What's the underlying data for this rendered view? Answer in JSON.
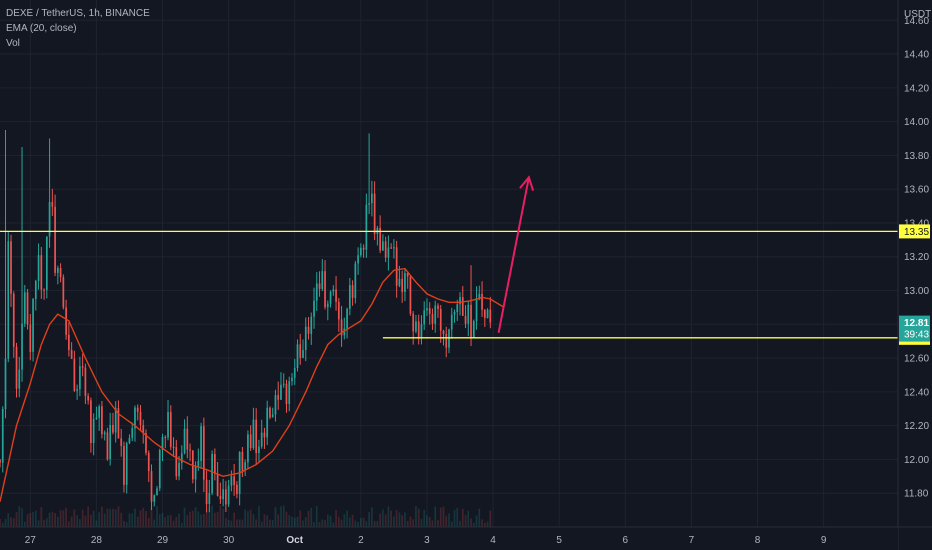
{
  "legend": {
    "symbol_line": "DEXE / TetherUS, 1h, BINANCE",
    "ema_line": "EMA (20, close)",
    "vol_line": "Vol"
  },
  "currency": "USDT",
  "colors": {
    "background": "#131722",
    "grid": "#1f2330",
    "up": "#26a69a",
    "down": "#ef5350",
    "ema": "#e0401a",
    "level": "#ffff3b",
    "arrow": "#e91e63",
    "last_price_bg": "#26a69a"
  },
  "chart_data": {
    "type": "candlestick",
    "symbol": "DEXE / TetherUS",
    "interval": "1h",
    "exchange": "BINANCE",
    "y_ticks": [
      "11.80",
      "12.00",
      "12.20",
      "12.40",
      "12.60",
      "12.80",
      "13.00",
      "13.20",
      "13.40",
      "13.60",
      "13.80",
      "14.00",
      "14.20",
      "14.40",
      "14.60"
    ],
    "x_ticks": [
      {
        "t": 0,
        "label": "27"
      },
      {
        "t": 24,
        "label": "28"
      },
      {
        "t": 48,
        "label": "29"
      },
      {
        "t": 72,
        "label": "30"
      },
      {
        "t": 96,
        "label": "Oct"
      },
      {
        "t": 120,
        "label": "2"
      },
      {
        "t": 144,
        "label": "3"
      },
      {
        "t": 168,
        "label": "4"
      },
      {
        "t": 192,
        "label": "5"
      },
      {
        "t": 216,
        "label": "6"
      },
      {
        "t": 240,
        "label": "7"
      },
      {
        "t": 264,
        "label": "8"
      },
      {
        "t": 288,
        "label": "9"
      }
    ],
    "ylim": [
      11.6,
      14.72
    ],
    "xlim_hours": [
      -11,
      315
    ],
    "horizontal_levels": [
      {
        "price": 13.35,
        "label": "13.35",
        "from_t": -11
      },
      {
        "price": 12.72,
        "label": "12.72",
        "from_t": 128
      }
    ],
    "last_price": {
      "value": "12.81",
      "countdown": "39:43"
    },
    "anchors": [
      {
        "t": -11,
        "p": 12.0
      },
      {
        "t": -9,
        "p": 12.7
      },
      {
        "t": -8,
        "p": 13.3
      },
      {
        "t": -5,
        "p": 12.4
      },
      {
        "t": -2,
        "p": 13.0
      },
      {
        "t": 0,
        "p": 12.7
      },
      {
        "t": 3,
        "p": 13.3
      },
      {
        "t": 5,
        "p": 12.9
      },
      {
        "t": 7,
        "p": 13.6
      },
      {
        "t": 9,
        "p": 13.2
      },
      {
        "t": 11,
        "p": 13.0
      },
      {
        "t": 13,
        "p": 12.8
      },
      {
        "t": 16,
        "p": 12.4
      },
      {
        "t": 19,
        "p": 12.6
      },
      {
        "t": 22,
        "p": 12.2
      },
      {
        "t": 25,
        "p": 12.3
      },
      {
        "t": 28,
        "p": 12.0
      },
      {
        "t": 31,
        "p": 12.3
      },
      {
        "t": 34,
        "p": 11.9
      },
      {
        "t": 38,
        "p": 12.3
      },
      {
        "t": 41,
        "p": 12.1
      },
      {
        "t": 44,
        "p": 11.8
      },
      {
        "t": 47,
        "p": 12.0
      },
      {
        "t": 50,
        "p": 12.2
      },
      {
        "t": 53,
        "p": 11.95
      },
      {
        "t": 56,
        "p": 12.15
      },
      {
        "t": 59,
        "p": 11.85
      },
      {
        "t": 62,
        "p": 12.1
      },
      {
        "t": 64,
        "p": 11.8
      },
      {
        "t": 67,
        "p": 12.0
      },
      {
        "t": 69,
        "p": 11.75
      },
      {
        "t": 72,
        "p": 11.8
      },
      {
        "t": 75,
        "p": 11.9
      },
      {
        "t": 78,
        "p": 12.05
      },
      {
        "t": 81,
        "p": 12.15
      },
      {
        "t": 84,
        "p": 12.1
      },
      {
        "t": 87,
        "p": 12.25
      },
      {
        "t": 90,
        "p": 12.3
      },
      {
        "t": 93,
        "p": 12.4
      },
      {
        "t": 96,
        "p": 12.55
      },
      {
        "t": 99,
        "p": 12.7
      },
      {
        "t": 102,
        "p": 12.9
      },
      {
        "t": 105,
        "p": 13.1
      },
      {
        "t": 107,
        "p": 12.95
      },
      {
        "t": 110,
        "p": 12.9
      },
      {
        "t": 112,
        "p": 12.75
      },
      {
        "t": 114,
        "p": 12.8
      },
      {
        "t": 117,
        "p": 13.0
      },
      {
        "t": 119,
        "p": 13.2
      },
      {
        "t": 121,
        "p": 13.35
      },
      {
        "t": 123,
        "p": 13.55
      },
      {
        "t": 126,
        "p": 13.3
      },
      {
        "t": 129,
        "p": 13.2
      },
      {
        "t": 132,
        "p": 13.15
      },
      {
        "t": 135,
        "p": 13.1
      },
      {
        "t": 137,
        "p": 13.05
      },
      {
        "t": 139,
        "p": 12.8
      },
      {
        "t": 142,
        "p": 12.75
      },
      {
        "t": 145,
        "p": 12.85
      },
      {
        "t": 148,
        "p": 12.9
      },
      {
        "t": 151,
        "p": 12.75
      },
      {
        "t": 154,
        "p": 12.95
      },
      {
        "t": 157,
        "p": 12.9
      },
      {
        "t": 160,
        "p": 12.8
      },
      {
        "t": 163,
        "p": 13.0
      },
      {
        "t": 165,
        "p": 12.85
      },
      {
        "t": 167,
        "p": 12.81
      }
    ],
    "ema": [
      {
        "t": -11,
        "p": 11.75
      },
      {
        "t": -5,
        "p": 12.2
      },
      {
        "t": 0,
        "p": 12.45
      },
      {
        "t": 4,
        "p": 12.68
      },
      {
        "t": 7,
        "p": 12.8
      },
      {
        "t": 10,
        "p": 12.86
      },
      {
        "t": 14,
        "p": 12.82
      },
      {
        "t": 20,
        "p": 12.6
      },
      {
        "t": 26,
        "p": 12.4
      },
      {
        "t": 32,
        "p": 12.27
      },
      {
        "t": 38,
        "p": 12.2
      },
      {
        "t": 45,
        "p": 12.1
      },
      {
        "t": 52,
        "p": 12.02
      },
      {
        "t": 58,
        "p": 11.97
      },
      {
        "t": 64,
        "p": 11.94
      },
      {
        "t": 70,
        "p": 11.9
      },
      {
        "t": 76,
        "p": 11.92
      },
      {
        "t": 82,
        "p": 11.97
      },
      {
        "t": 88,
        "p": 12.05
      },
      {
        "t": 94,
        "p": 12.2
      },
      {
        "t": 100,
        "p": 12.4
      },
      {
        "t": 104,
        "p": 12.55
      },
      {
        "t": 108,
        "p": 12.68
      },
      {
        "t": 112,
        "p": 12.74
      },
      {
        "t": 116,
        "p": 12.78
      },
      {
        "t": 120,
        "p": 12.82
      },
      {
        "t": 124,
        "p": 12.92
      },
      {
        "t": 128,
        "p": 13.05
      },
      {
        "t": 132,
        "p": 13.12
      },
      {
        "t": 136,
        "p": 13.13
      },
      {
        "t": 140,
        "p": 13.05
      },
      {
        "t": 144,
        "p": 12.98
      },
      {
        "t": 148,
        "p": 12.95
      },
      {
        "t": 152,
        "p": 12.93
      },
      {
        "t": 156,
        "p": 12.93
      },
      {
        "t": 160,
        "p": 12.94
      },
      {
        "t": 164,
        "p": 12.96
      },
      {
        "t": 167,
        "p": 12.95
      },
      {
        "t": 172,
        "p": 12.9
      }
    ],
    "spikes": [
      {
        "t": -9,
        "p": 13.95
      },
      {
        "t": -3,
        "p": 13.85
      },
      {
        "t": 7,
        "p": 13.9
      },
      {
        "t": 123,
        "p": 13.93
      },
      {
        "t": 160,
        "p": 13.15
      }
    ],
    "arrow": {
      "from": {
        "t": 170,
        "p": 12.75
      },
      "to": {
        "t": 181,
        "p": 13.67
      }
    }
  }
}
